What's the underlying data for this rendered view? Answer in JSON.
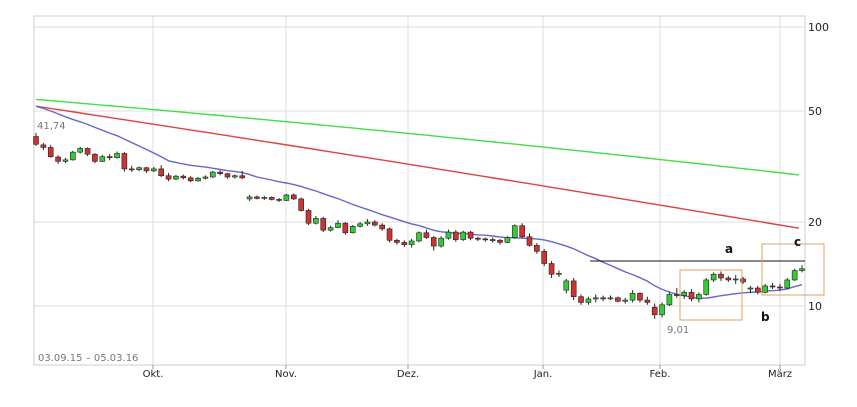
{
  "chart_data": {
    "type": "candlestick",
    "date_range": "03.09.15 – 05.03.16",
    "y_scale": "log",
    "ylim": [
      6,
      100
    ],
    "y_ticks": [
      {
        "value": 100,
        "label": "100"
      },
      {
        "value": 50,
        "label": "50"
      },
      {
        "value": 20,
        "label": "20"
      },
      {
        "value": 10,
        "label": "10"
      }
    ],
    "x_ticks": [
      "Okt.",
      "Nov.",
      "Dez.",
      "Jan.",
      "Feb.",
      "März"
    ],
    "price_labels": [
      {
        "label": "41,74",
        "value": 41.74
      },
      {
        "label": "9,01",
        "value": 9.01
      }
    ],
    "annotations": [
      "a",
      "b",
      "c"
    ],
    "colors": {
      "up": "#33cc33",
      "down": "#cc3333",
      "ma_fast": "#6666cc",
      "ma_mid": "#dd4444",
      "ma_slow": "#44dd44",
      "box": "#e0a060",
      "grid": "#dddddd"
    },
    "candles": [
      [
        40.5,
        41.7,
        37.5,
        38.0
      ],
      [
        37.8,
        38.4,
        36.2,
        37.0
      ],
      [
        37.0,
        37.8,
        34.0,
        34.3
      ],
      [
        34.2,
        34.7,
        32.3,
        33.0
      ],
      [
        33.0,
        34.0,
        32.5,
        33.4
      ],
      [
        33.4,
        36.0,
        33.2,
        35.6
      ],
      [
        35.6,
        37.2,
        35.2,
        36.7
      ],
      [
        36.7,
        37.0,
        34.5,
        35.0
      ],
      [
        35.0,
        35.3,
        32.5,
        33.0
      ],
      [
        33.0,
        34.8,
        32.8,
        34.3
      ],
      [
        34.3,
        35.0,
        33.3,
        34.0
      ],
      [
        34.0,
        35.8,
        33.8,
        35.2
      ],
      [
        35.2,
        35.6,
        30.3,
        31.0
      ],
      [
        31.0,
        31.8,
        30.2,
        30.8
      ],
      [
        30.8,
        31.6,
        30.4,
        31.3
      ],
      [
        31.3,
        31.5,
        30.0,
        30.5
      ],
      [
        30.5,
        31.5,
        30.2,
        31.0
      ],
      [
        31.0,
        32.0,
        29.0,
        29.3
      ],
      [
        29.3,
        30.0,
        28.0,
        28.5
      ],
      [
        28.5,
        29.5,
        28.3,
        29.2
      ],
      [
        29.2,
        29.6,
        28.4,
        28.8
      ],
      [
        28.8,
        29.2,
        27.8,
        28.1
      ],
      [
        28.1,
        29.0,
        27.9,
        28.7
      ],
      [
        28.7,
        29.4,
        28.4,
        29.0
      ],
      [
        29.0,
        30.5,
        28.8,
        30.2
      ],
      [
        30.2,
        30.6,
        29.4,
        29.8
      ],
      [
        29.8,
        30.0,
        28.6,
        29.0
      ],
      [
        29.0,
        29.6,
        28.6,
        29.3
      ],
      [
        29.3,
        30.5,
        28.5,
        28.8
      ],
      [
        24.2,
        25.0,
        23.8,
        24.6
      ],
      [
        24.6,
        24.9,
        24.1,
        24.3
      ],
      [
        24.3,
        24.8,
        24.0,
        24.5
      ],
      [
        24.5,
        24.7,
        23.9,
        24.1
      ],
      [
        24.1,
        24.4,
        23.6,
        23.9
      ],
      [
        23.9,
        25.2,
        23.8,
        25.0
      ],
      [
        25.0,
        25.3,
        24.0,
        24.2
      ],
      [
        24.2,
        24.5,
        21.8,
        22.0
      ],
      [
        22.0,
        22.3,
        19.5,
        19.8
      ],
      [
        19.8,
        21.0,
        19.6,
        20.6
      ],
      [
        20.6,
        20.9,
        18.4,
        18.7
      ],
      [
        18.7,
        19.4,
        18.5,
        19.1
      ],
      [
        19.1,
        20.3,
        19.0,
        19.8
      ],
      [
        19.8,
        20.0,
        18.0,
        18.3
      ],
      [
        18.3,
        19.5,
        18.2,
        19.3
      ],
      [
        19.3,
        20.0,
        19.1,
        19.7
      ],
      [
        19.7,
        20.5,
        19.4,
        20.0
      ],
      [
        20.0,
        20.3,
        19.3,
        19.5
      ],
      [
        19.5,
        19.8,
        18.6,
        18.9
      ],
      [
        18.9,
        19.1,
        16.9,
        17.2
      ],
      [
        17.2,
        17.4,
        16.6,
        16.9
      ],
      [
        16.9,
        17.2,
        16.3,
        16.6
      ],
      [
        16.6,
        17.4,
        16.2,
        17.1
      ],
      [
        17.1,
        18.5,
        16.9,
        18.3
      ],
      [
        18.3,
        18.8,
        17.4,
        17.6
      ],
      [
        17.6,
        17.8,
        15.8,
        16.4
      ],
      [
        16.4,
        17.8,
        16.2,
        17.5
      ],
      [
        17.5,
        18.8,
        17.3,
        18.4
      ],
      [
        18.4,
        18.7,
        17.0,
        17.3
      ],
      [
        17.3,
        18.6,
        17.1,
        18.4
      ],
      [
        18.4,
        18.6,
        17.2,
        17.5
      ],
      [
        17.5,
        17.7,
        17.1,
        17.4
      ],
      [
        17.4,
        17.6,
        17.0,
        17.3
      ],
      [
        17.3,
        17.6,
        16.9,
        17.2
      ],
      [
        17.2,
        17.4,
        16.6,
        16.9
      ],
      [
        16.9,
        17.8,
        16.8,
        17.6
      ],
      [
        17.6,
        19.6,
        17.4,
        19.4
      ],
      [
        19.4,
        19.8,
        17.5,
        17.7
      ],
      [
        17.7,
        18.2,
        16.3,
        16.5
      ],
      [
        16.5,
        16.8,
        15.4,
        15.7
      ],
      [
        15.7,
        16.0,
        13.9,
        14.2
      ],
      [
        14.2,
        14.5,
        12.6,
        13.0
      ],
      [
        13.0,
        13.4,
        12.7,
        13.1
      ],
      [
        11.4,
        12.5,
        11.1,
        12.3
      ],
      [
        12.3,
        12.6,
        10.5,
        10.8
      ],
      [
        10.8,
        11.0,
        10.1,
        10.3
      ],
      [
        10.3,
        10.8,
        10.1,
        10.6
      ],
      [
        10.6,
        11.0,
        10.3,
        10.7
      ],
      [
        10.7,
        10.9,
        10.4,
        10.6
      ],
      [
        10.6,
        10.9,
        10.5,
        10.7
      ],
      [
        10.7,
        10.8,
        10.3,
        10.4
      ],
      [
        10.4,
        10.7,
        10.2,
        10.5
      ],
      [
        10.5,
        11.4,
        10.3,
        11.1
      ],
      [
        11.1,
        11.2,
        10.3,
        10.5
      ],
      [
        10.5,
        10.8,
        10.1,
        10.3
      ],
      [
        9.9,
        10.2,
        9.0,
        9.3
      ],
      [
        9.3,
        10.3,
        9.1,
        10.1
      ],
      [
        10.1,
        11.2,
        10.0,
        11.0
      ],
      [
        11.0,
        11.6,
        10.7,
        10.9
      ],
      [
        10.9,
        11.4,
        10.6,
        11.2
      ],
      [
        11.2,
        11.5,
        10.4,
        10.6
      ],
      [
        10.6,
        11.2,
        10.3,
        11.0
      ],
      [
        11.0,
        12.6,
        10.9,
        12.4
      ],
      [
        12.4,
        13.2,
        12.2,
        13.0
      ],
      [
        13.0,
        13.3,
        12.3,
        12.6
      ],
      [
        12.6,
        12.8,
        12.2,
        12.4
      ],
      [
        12.4,
        12.9,
        12.0,
        12.5
      ],
      [
        12.5,
        12.7,
        12.0,
        12.2
      ],
      [
        11.5,
        11.8,
        11.1,
        11.6
      ],
      [
        11.6,
        11.8,
        11.0,
        11.2
      ],
      [
        11.2,
        12.0,
        11.1,
        11.8
      ],
      [
        11.8,
        12.1,
        11.5,
        11.7
      ],
      [
        11.7,
        12.0,
        11.3,
        11.6
      ],
      [
        11.6,
        12.6,
        11.5,
        12.4
      ],
      [
        12.4,
        13.6,
        12.3,
        13.4
      ],
      [
        13.4,
        14.0,
        13.2,
        13.6
      ]
    ]
  }
}
